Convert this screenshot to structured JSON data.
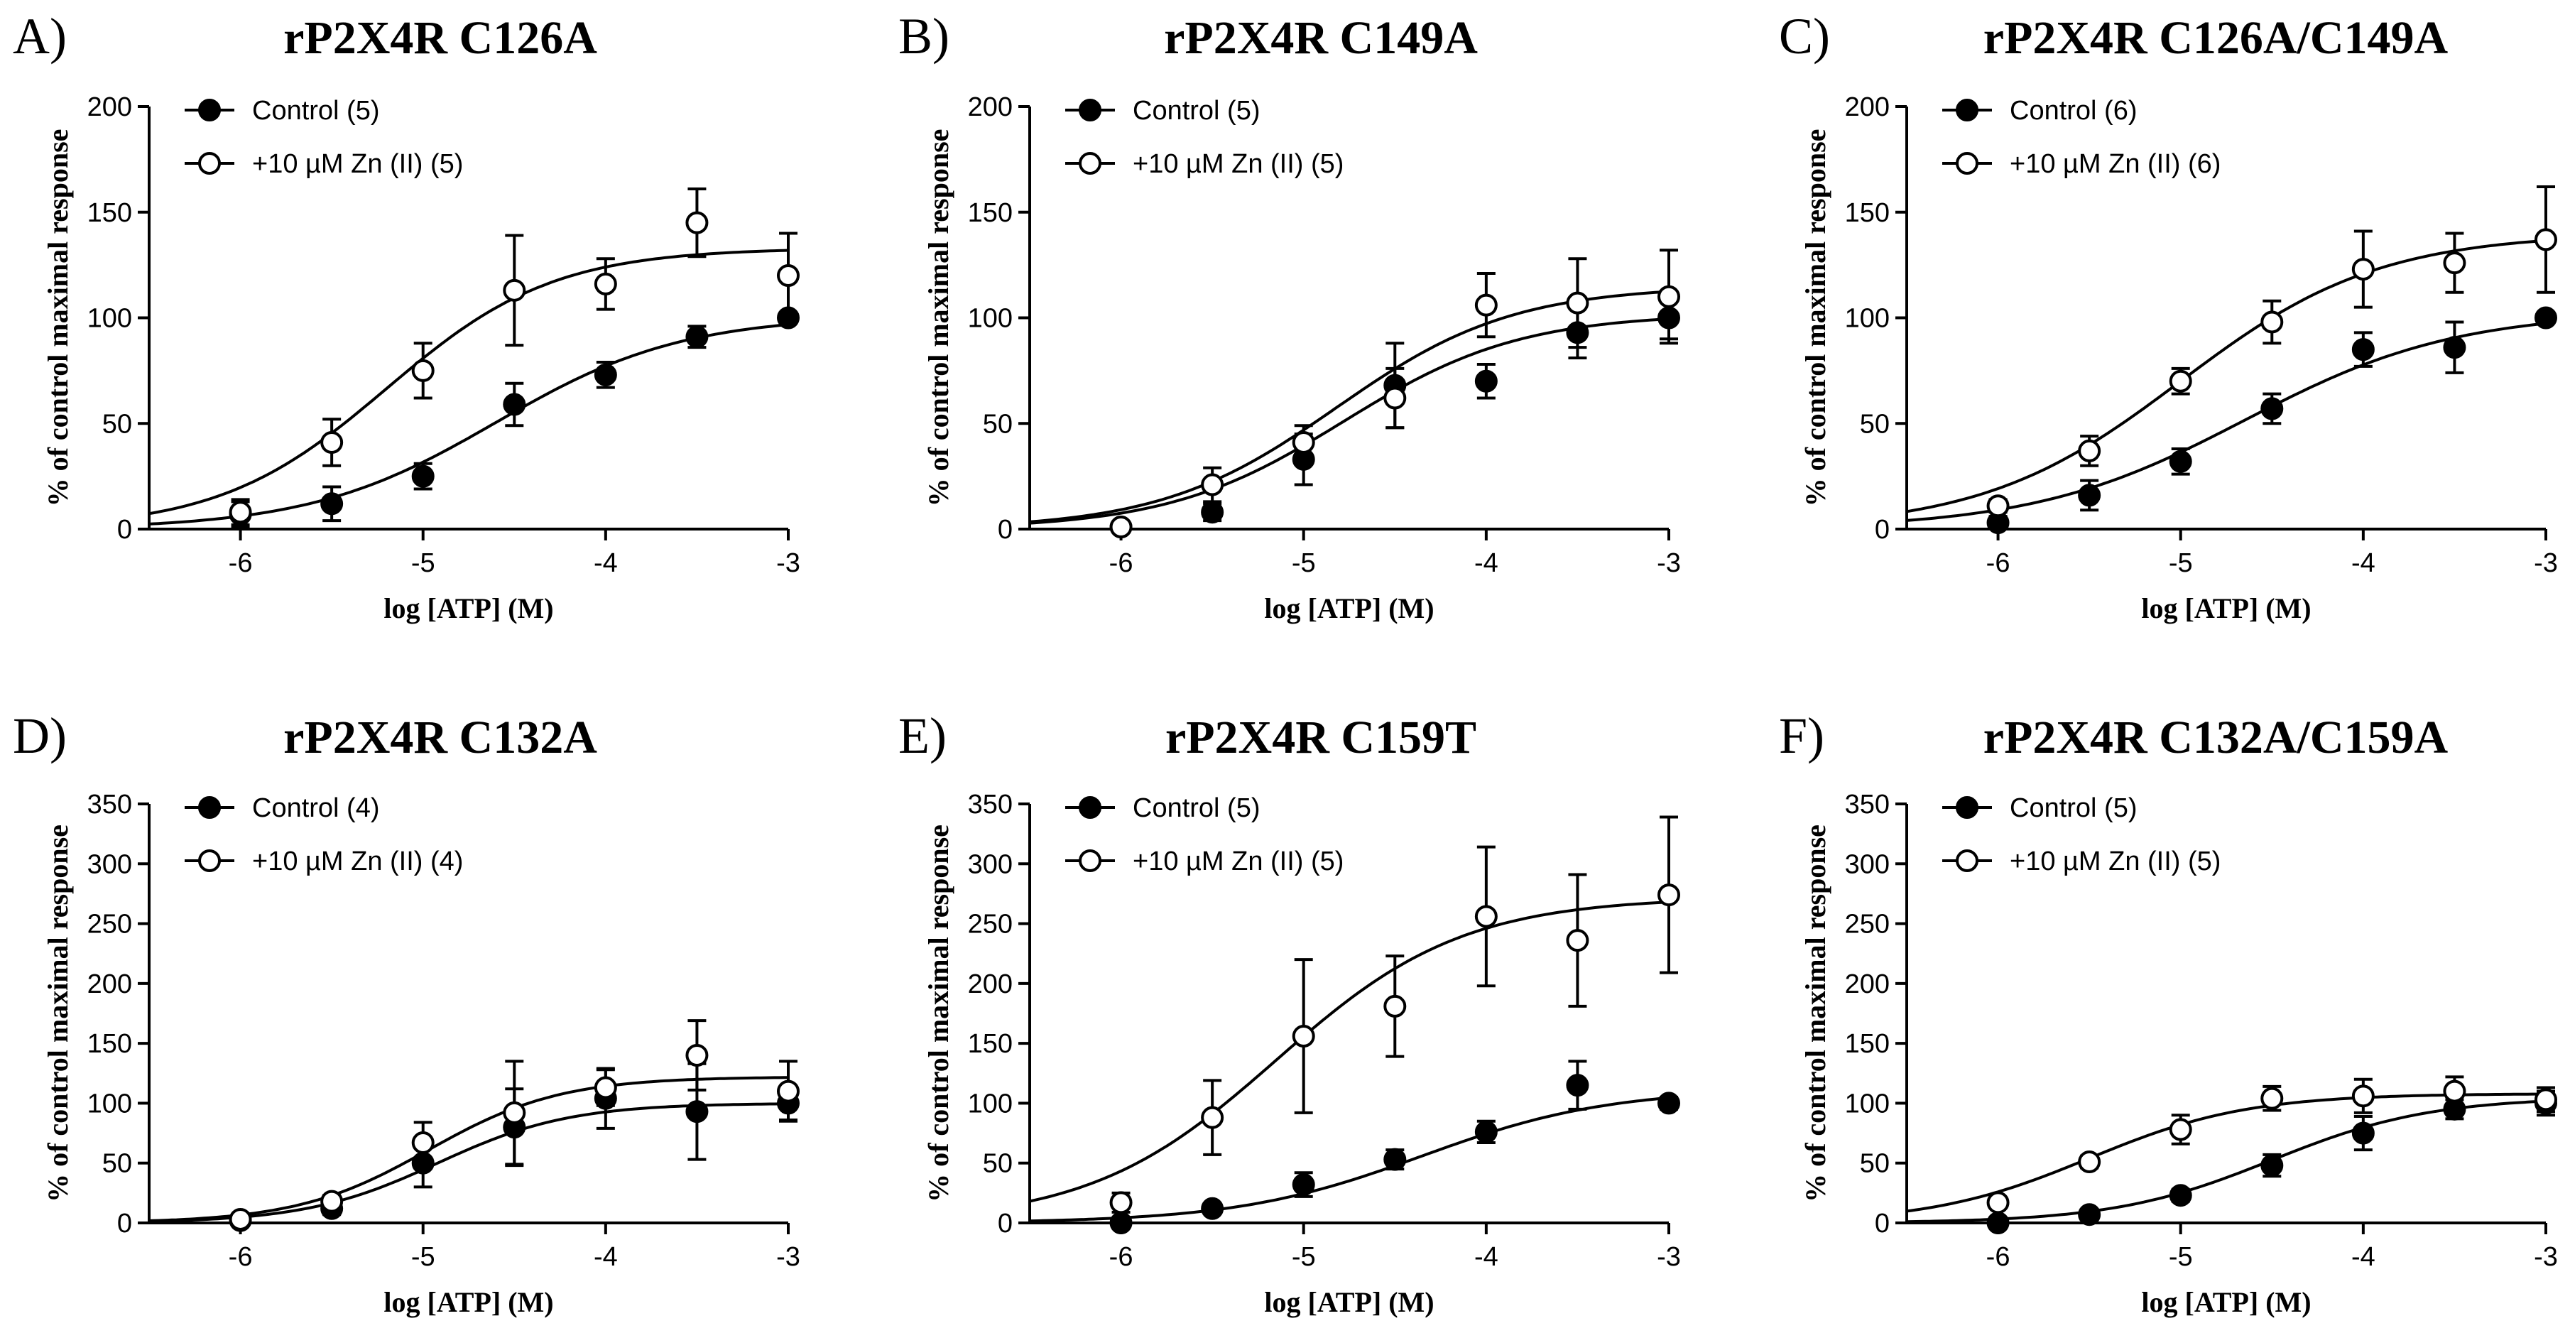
{
  "chart_data": [
    {
      "type": "scatter",
      "panel": "A)",
      "title": "rP2X4R C126A",
      "xlabel": "log [ATP] (M)",
      "ylabel": "% of control maximal response",
      "xlim": [
        -6.5,
        -3
      ],
      "ylim": [
        0,
        200
      ],
      "xticks": [
        -6,
        -5,
        -4,
        -3
      ],
      "yticks": [
        0,
        50,
        100,
        150,
        200
      ],
      "x": [
        -6,
        -5.5,
        -5,
        -4.5,
        -4,
        -3.5,
        -3
      ],
      "series": [
        {
          "name": "Control (5)",
          "marker": "filled",
          "values": [
            7,
            12,
            25,
            59,
            73,
            91,
            100
          ],
          "errors": [
            6,
            8,
            6,
            10,
            6,
            5,
            0
          ],
          "fit": {
            "bottom": 0,
            "top": 101,
            "logEC50": -4.6,
            "hill": 0.85
          }
        },
        {
          "name": "+10 µM Zn (II) (5)",
          "marker": "open",
          "values": [
            8,
            41,
            75,
            113,
            116,
            145,
            120
          ],
          "errors": [
            6,
            11,
            13,
            26,
            12,
            16,
            20
          ],
          "fit": {
            "bottom": 0,
            "top": 133,
            "logEC50": -5.2,
            "hill": 0.95
          }
        }
      ]
    },
    {
      "type": "scatter",
      "panel": "B)",
      "title": "rP2X4R C149A",
      "xlabel": "log [ATP] (M)",
      "ylabel": "% of control maximal response",
      "xlim": [
        -6.5,
        -3
      ],
      "ylim": [
        0,
        200
      ],
      "xticks": [
        -6,
        -5,
        -4,
        -3
      ],
      "yticks": [
        0,
        50,
        100,
        150,
        200
      ],
      "x": [
        -6,
        -5.5,
        -5,
        -4.5,
        -4,
        -3.5,
        -3
      ],
      "series": [
        {
          "name": "Control (5)",
          "marker": "filled",
          "values": [
            1,
            8,
            33,
            68,
            70,
            93,
            100
          ],
          "errors": [
            2,
            4,
            12,
            20,
            8,
            12,
            10
          ],
          "fit": {
            "bottom": 0,
            "top": 102,
            "logEC50": -4.78,
            "hill": 0.9
          }
        },
        {
          "name": "+10 µM Zn (II) (5)",
          "marker": "open",
          "values": [
            1,
            21,
            41,
            62,
            106,
            107,
            110
          ],
          "errors": [
            2,
            8,
            8,
            14,
            15,
            21,
            22
          ],
          "fit": {
            "bottom": 0,
            "top": 115,
            "logEC50": -4.82,
            "hill": 0.9
          }
        }
      ]
    },
    {
      "type": "scatter",
      "panel": "C)",
      "title": "rP2X4R C126A/C149A",
      "xlabel": "log [ATP] (M)",
      "ylabel": "% of control maximal response",
      "xlim": [
        -6.5,
        -3
      ],
      "ylim": [
        0,
        200
      ],
      "xticks": [
        -6,
        -5,
        -4,
        -3
      ],
      "yticks": [
        0,
        50,
        100,
        150,
        200
      ],
      "x": [
        -6,
        -5.5,
        -5,
        -4.5,
        -4,
        -3.5,
        -3
      ],
      "series": [
        {
          "name": "Control (6)",
          "marker": "filled",
          "values": [
            3,
            16,
            32,
            57,
            85,
            86,
            100
          ],
          "errors": [
            3,
            7,
            6,
            7,
            8,
            12,
            0
          ],
          "fit": {
            "bottom": 0,
            "top": 103,
            "logEC50": -4.65,
            "hill": 0.75
          }
        },
        {
          "name": "+10 µM Zn (II) (6)",
          "marker": "open",
          "values": [
            11,
            37,
            70,
            98,
            123,
            126,
            137
          ],
          "errors": [
            3,
            7,
            6,
            10,
            18,
            14,
            25
          ],
          "fit": {
            "bottom": 0,
            "top": 140,
            "logEC50": -5.0,
            "hill": 0.8
          }
        }
      ]
    },
    {
      "type": "scatter",
      "panel": "D)",
      "title": "rP2X4R C132A",
      "xlabel": "log [ATP] (M)",
      "ylabel": "% of control maximal response",
      "xlim": [
        -6.5,
        -3
      ],
      "ylim": [
        0,
        350
      ],
      "xticks": [
        -6,
        -5,
        -4,
        -3
      ],
      "yticks": [
        0,
        50,
        100,
        150,
        200,
        250,
        300,
        350
      ],
      "x": [
        -6,
        -5.5,
        -5,
        -4.5,
        -4,
        -3.5,
        -3
      ],
      "series": [
        {
          "name": "Control (4)",
          "marker": "filled",
          "values": [
            2,
            12,
            50,
            80,
            104,
            93,
            100
          ],
          "errors": [
            3,
            5,
            20,
            32,
            25,
            40,
            14
          ],
          "fit": {
            "bottom": 0,
            "top": 100,
            "logEC50": -4.92,
            "hill": 1.2
          }
        },
        {
          "name": "+10 µM Zn (II) (4)",
          "marker": "open",
          "values": [
            3,
            18,
            67,
            92,
            113,
            140,
            110
          ],
          "errors": [
            3,
            5,
            17,
            43,
            15,
            29,
            25
          ],
          "fit": {
            "bottom": 0,
            "top": 122,
            "logEC50": -4.97,
            "hill": 1.2
          }
        }
      ]
    },
    {
      "type": "scatter",
      "panel": "E)",
      "title": "rP2X4R C159T",
      "xlabel": "log [ATP] (M)",
      "ylabel": "% of control maximal response",
      "xlim": [
        -6.5,
        -3
      ],
      "ylim": [
        0,
        350
      ],
      "xticks": [
        -6,
        -5,
        -4,
        -3
      ],
      "yticks": [
        0,
        50,
        100,
        150,
        200,
        250,
        300,
        350
      ],
      "x": [
        -6,
        -5.5,
        -5,
        -4.5,
        -4,
        -3.5,
        -3
      ],
      "series": [
        {
          "name": "Control (5)",
          "marker": "filled",
          "values": [
            0,
            12,
            32,
            53,
            76,
            115,
            100
          ],
          "errors": [
            2,
            3,
            10,
            8,
            9,
            20,
            5
          ],
          "fit": {
            "bottom": 0,
            "top": 112,
            "logEC50": -4.35,
            "hill": 0.85
          }
        },
        {
          "name": "+10 µM Zn (II) (5)",
          "marker": "open",
          "values": [
            17,
            88,
            156,
            181,
            256,
            236,
            274
          ],
          "errors": [
            8,
            31,
            64,
            42,
            58,
            55,
            65
          ],
          "fit": {
            "bottom": 0,
            "top": 272,
            "logEC50": -5.15,
            "hill": 0.85
          }
        }
      ]
    },
    {
      "type": "scatter",
      "panel": "F)",
      "title": "rP2X4R C132A/C159A",
      "xlabel": "log [ATP] (M)",
      "ylabel": "% of control maximal response",
      "xlim": [
        -6.5,
        -3
      ],
      "ylim": [
        0,
        350
      ],
      "xticks": [
        -6,
        -5,
        -4,
        -3
      ],
      "yticks": [
        0,
        50,
        100,
        150,
        200,
        250,
        300,
        350
      ],
      "x": [
        -6,
        -5.5,
        -5,
        -4.5,
        -4,
        -3.5,
        -3
      ],
      "series": [
        {
          "name": "Control (5)",
          "marker": "filled",
          "values": [
            0,
            7,
            23,
            48,
            75,
            95,
            100
          ],
          "errors": [
            2,
            3,
            5,
            9,
            14,
            8,
            10
          ],
          "fit": {
            "bottom": 0,
            "top": 105,
            "logEC50": -4.5,
            "hill": 1.0
          }
        },
        {
          "name": "+10 µM Zn (II) (5)",
          "marker": "open",
          "values": [
            17,
            51,
            78,
            104,
            106,
            110,
            103
          ],
          "errors": [
            4,
            5,
            12,
            10,
            14,
            12,
            10
          ],
          "fit": {
            "bottom": 0,
            "top": 108,
            "logEC50": -5.5,
            "hill": 1.0
          }
        }
      ]
    }
  ]
}
